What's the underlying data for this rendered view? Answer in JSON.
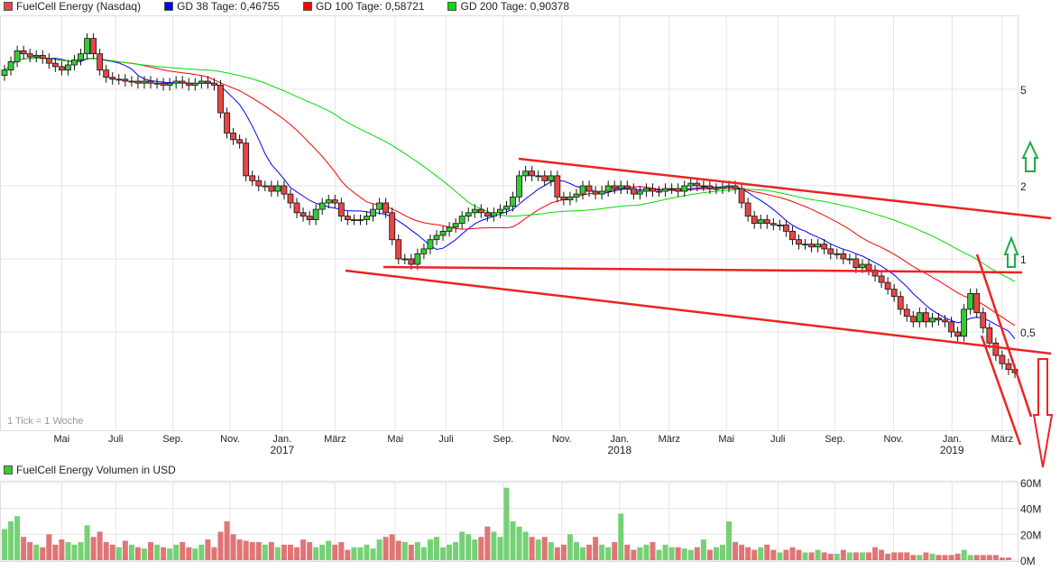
{
  "legend": {
    "main": "FuelCell Energy (Nasdaq)",
    "gd38": "GD 38 Tage: 0,46755",
    "gd100": "GD 100 Tage: 0,58721",
    "gd200": "GD 200 Tage: 0,90378",
    "volume": "FuelCell Energy Volumen in USD",
    "tick_note": "1 Tick = 1 Woche"
  },
  "colors": {
    "up": "#33cc33",
    "down": "#e84545",
    "gd38": "#0000ff",
    "gd100": "#ff0000",
    "gd200": "#00dd00",
    "annotation": "#ee2222",
    "arrow_up": "#22aa44"
  },
  "chart_data": [
    {
      "type": "candlestick",
      "title": "FuelCell Energy (Nasdaq)",
      "yscale": "log",
      "ylim": [
        0.25,
        9.5
      ],
      "y_ticks": [
        {
          "v": 5,
          "label": "5"
        },
        {
          "v": 2,
          "label": "2"
        },
        {
          "v": 1,
          "label": "1"
        },
        {
          "v": 0.5,
          "label": "0,5"
        }
      ],
      "x_ticks": [
        {
          "w": 9,
          "label": "Mai"
        },
        {
          "w": 17.5,
          "label": "Juli"
        },
        {
          "w": 26.5,
          "label": "Sep."
        },
        {
          "w": 35.5,
          "label": "Nov."
        },
        {
          "w": 43.7,
          "label": "Jan.",
          "year": "2017"
        },
        {
          "w": 52,
          "label": "März"
        },
        {
          "w": 61.5,
          "label": "Mai"
        },
        {
          "w": 69.5,
          "label": "Juli"
        },
        {
          "w": 78.5,
          "label": "Sep."
        },
        {
          "w": 87.7,
          "label": "Nov."
        },
        {
          "w": 96.8,
          "label": "Jan.",
          "year": "2018"
        },
        {
          "w": 104.6,
          "label": "März"
        },
        {
          "w": 113.6,
          "label": "Mai"
        },
        {
          "w": 121.7,
          "label": "Juli"
        },
        {
          "w": 130.7,
          "label": "Sep."
        },
        {
          "w": 139.9,
          "label": "Nov."
        },
        {
          "w": 149.1,
          "label": "Jan.",
          "year": "2019"
        },
        {
          "w": 157,
          "label": "März"
        }
      ],
      "series": [
        {
          "name": "FuelCell Energy (Nasdaq)",
          "close": [
            6.0,
            6.5,
            7.2,
            7.0,
            6.8,
            6.9,
            6.7,
            6.4,
            6.2,
            6.0,
            6.3,
            6.6,
            7.0,
            8.1,
            7.0,
            6.0,
            5.6,
            5.5,
            5.5,
            5.4,
            5.4,
            5.3,
            5.4,
            5.3,
            5.3,
            5.2,
            5.3,
            5.4,
            5.3,
            5.2,
            5.3,
            5.4,
            5.3,
            5.2,
            4.0,
            3.3,
            3.1,
            3.0,
            2.2,
            2.1,
            2.0,
            2.0,
            1.9,
            2.0,
            1.85,
            1.7,
            1.55,
            1.5,
            1.45,
            1.6,
            1.7,
            1.75,
            1.7,
            1.5,
            1.45,
            1.45,
            1.45,
            1.5,
            1.6,
            1.7,
            1.55,
            1.2,
            1.0,
            1.0,
            0.95,
            1.05,
            1.1,
            1.2,
            1.25,
            1.3,
            1.35,
            1.4,
            1.5,
            1.55,
            1.6,
            1.55,
            1.5,
            1.55,
            1.6,
            1.65,
            1.8,
            2.2,
            2.3,
            2.2,
            2.2,
            2.1,
            2.2,
            1.8,
            1.75,
            1.8,
            1.85,
            2.0,
            1.9,
            1.85,
            1.9,
            2.0,
            1.95,
            2.0,
            1.95,
            1.85,
            1.9,
            1.95,
            1.9,
            1.9,
            1.95,
            1.95,
            1.9,
            2.0,
            2.05,
            2.0,
            2.0,
            1.95,
            1.95,
            1.98,
            2.0,
            1.95,
            1.7,
            1.5,
            1.4,
            1.45,
            1.4,
            1.38,
            1.38,
            1.3,
            1.2,
            1.15,
            1.15,
            1.12,
            1.15,
            1.1,
            1.05,
            1.05,
            1.0,
            1.0,
            0.92,
            0.95,
            0.9,
            0.85,
            0.8,
            0.75,
            0.7,
            0.62,
            0.58,
            0.55,
            0.6,
            0.55,
            0.57,
            0.56,
            0.55,
            0.5,
            0.48,
            0.62,
            0.72,
            0.6,
            0.52,
            0.45,
            0.4,
            0.37,
            0.35,
            0.34
          ]
        },
        {
          "name": "GD 38 Tage",
          "last": 0.46755
        },
        {
          "name": "GD 100 Tage",
          "last": 0.58721
        },
        {
          "name": "GD 200 Tage",
          "last": 0.90378
        }
      ]
    },
    {
      "type": "bar",
      "title": "FuelCell Energy Volumen in USD",
      "ylim": [
        0,
        60
      ],
      "unit": "M",
      "y_ticks": [
        {
          "v": 60,
          "label": "60M"
        },
        {
          "v": 40,
          "label": "40M"
        },
        {
          "v": 20,
          "label": "20M"
        },
        {
          "v": 0,
          "label": "0M"
        }
      ],
      "values": [
        24,
        30,
        34,
        18,
        14,
        12,
        10,
        20,
        12,
        16,
        14,
        12,
        14,
        27,
        18,
        22,
        14,
        12,
        10,
        15,
        12,
        10,
        9,
        14,
        12,
        10,
        9,
        12,
        14,
        10,
        9,
        12,
        16,
        10,
        22,
        30,
        20,
        16,
        15,
        14,
        14,
        12,
        14,
        10,
        12,
        12,
        10,
        16,
        14,
        10,
        12,
        15,
        12,
        14,
        8,
        10,
        10,
        12,
        9,
        16,
        18,
        20,
        15,
        14,
        12,
        14,
        10,
        16,
        18,
        10,
        12,
        14,
        22,
        20,
        16,
        18,
        26,
        22,
        18,
        56,
        30,
        26,
        22,
        18,
        16,
        18,
        14,
        10,
        12,
        20,
        14,
        10,
        12,
        18,
        12,
        10,
        14,
        36,
        12,
        8,
        10,
        12,
        14,
        8,
        12,
        10,
        10,
        9,
        8,
        10,
        16,
        8,
        10,
        12,
        30,
        14,
        12,
        10,
        8,
        10,
        12,
        8,
        6,
        8,
        10,
        8,
        6,
        6,
        8,
        6,
        5,
        5,
        8,
        6,
        6,
        6,
        6,
        10,
        8,
        5,
        6,
        6,
        6,
        4,
        4,
        6,
        5,
        4,
        4,
        4,
        5,
        8,
        4,
        4,
        4,
        4,
        4,
        2,
        2
      ]
    }
  ]
}
